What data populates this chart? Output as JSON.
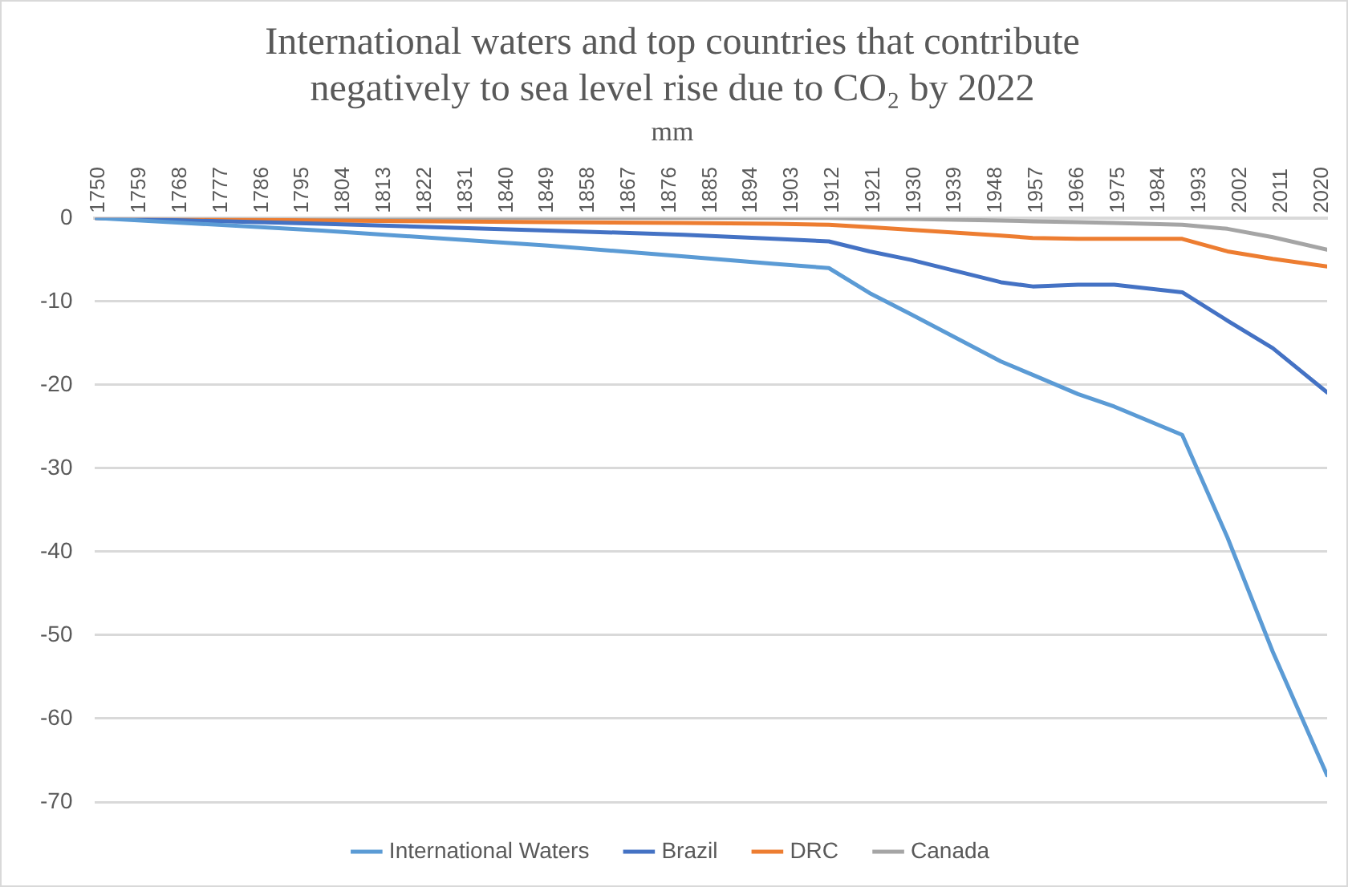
{
  "chart_data": {
    "type": "line",
    "title": "International waters and top countries that contribute negatively to sea level rise due to CO₂ by 2022",
    "ylabel": "mm",
    "x": [
      1750,
      1800,
      1850,
      1880,
      1900,
      1912,
      1921,
      1930,
      1950,
      1957,
      1967,
      1975,
      1990,
      2000,
      2010,
      2022
    ],
    "series": [
      {
        "name": "International Waters",
        "color": "#5b9bd5",
        "values": [
          0,
          -1.5,
          -3.3,
          -4.6,
          -5.5,
          -6.0,
          -9,
          -11.5,
          -17.2,
          -18.8,
          -21.1,
          -22.6,
          -26.0,
          -38.3,
          -52,
          -66.8
        ]
      },
      {
        "name": "Brazil",
        "color": "#4472c4",
        "values": [
          0,
          -0.7,
          -1.5,
          -2.0,
          -2.5,
          -2.8,
          -4.0,
          -5.0,
          -7.7,
          -8.2,
          -8.0,
          -8.0,
          -8.9,
          -12.3,
          -15.6,
          -20.9
        ]
      },
      {
        "name": "DRC",
        "color": "#ed7d31",
        "values": [
          0,
          -0.3,
          -0.5,
          -0.6,
          -0.7,
          -0.8,
          -1.1,
          -1.4,
          -2.1,
          -2.4,
          -2.5,
          -2.5,
          -2.5,
          -4.0,
          -4.9,
          -5.8
        ]
      },
      {
        "name": "Canada",
        "color": "#a5a5a5",
        "values": [
          0,
          0,
          0,
          0,
          0,
          0,
          -0.1,
          -0.1,
          -0.3,
          -0.4,
          -0.5,
          -0.6,
          -0.8,
          -1.3,
          -2.3,
          -3.8
        ]
      }
    ],
    "xlim": [
      1750,
      2022
    ],
    "xticks": [
      1750,
      1759,
      1768,
      1777,
      1786,
      1795,
      1804,
      1813,
      1822,
      1831,
      1840,
      1849,
      1858,
      1867,
      1876,
      1885,
      1894,
      1903,
      1912,
      1921,
      1930,
      1939,
      1948,
      1957,
      1966,
      1975,
      1984,
      1993,
      2002,
      2011,
      2020
    ],
    "ylim": [
      -70,
      0
    ],
    "yticks": [
      0,
      -10,
      -20,
      -30,
      -40,
      -50,
      -60,
      -70
    ],
    "grid": "y",
    "legend": "bottom",
    "marker": "none",
    "line_style": "solid"
  }
}
